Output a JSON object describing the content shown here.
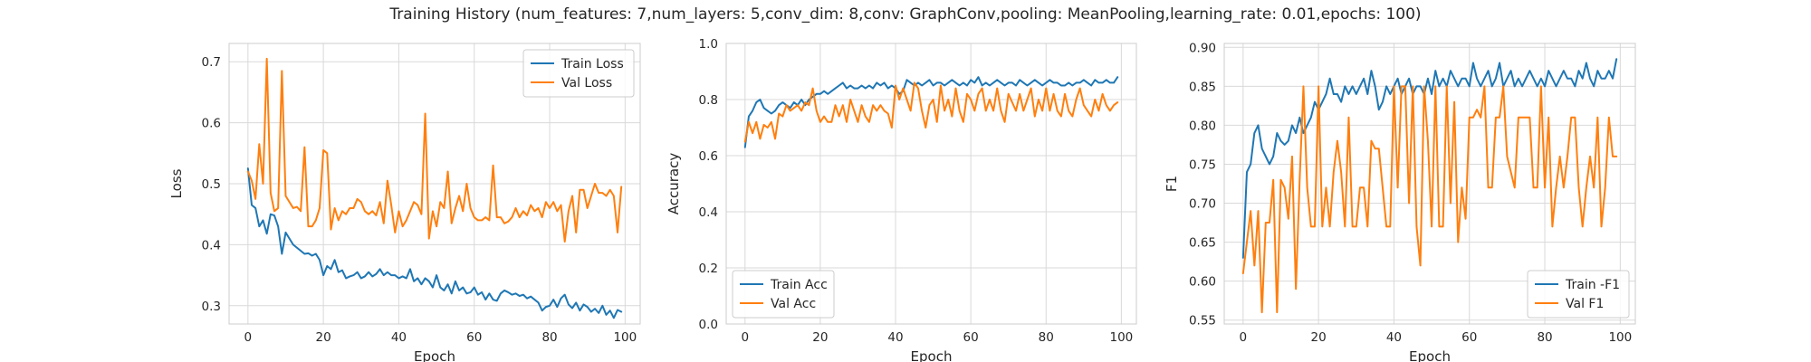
{
  "figure": {
    "title": "Training History (num_features: 7,num_layers: 5,conv_dim: 8,conv: GraphConv,pooling: MeanPooling,learning_rate: 0.01,epochs: 100)"
  },
  "colors": {
    "train": "#1f77b4",
    "val": "#ff7f0e",
    "grid": "#d9d9d9",
    "frame": "#cccccc",
    "text": "#262626"
  },
  "chart_data": [
    {
      "type": "line",
      "xlabel": "Epoch",
      "ylabel": "Loss",
      "xlim": [
        -5,
        104
      ],
      "ylim": [
        0.27,
        0.73
      ],
      "xticks": [
        0,
        20,
        40,
        60,
        80,
        100
      ],
      "yticks": [
        0.3,
        0.4,
        0.5,
        0.6,
        0.7
      ],
      "ytick_decimals": 1,
      "grid": true,
      "legend": "top-right",
      "series": [
        {
          "name": "Train Loss",
          "color": "#1f77b4",
          "x_start": 0,
          "values": [
            0.525,
            0.465,
            0.46,
            0.43,
            0.44,
            0.418,
            0.45,
            0.448,
            0.43,
            0.385,
            0.42,
            0.41,
            0.4,
            0.395,
            0.39,
            0.385,
            0.386,
            0.382,
            0.385,
            0.375,
            0.35,
            0.365,
            0.36,
            0.375,
            0.355,
            0.358,
            0.345,
            0.348,
            0.35,
            0.355,
            0.345,
            0.348,
            0.355,
            0.348,
            0.352,
            0.36,
            0.35,
            0.355,
            0.35,
            0.35,
            0.345,
            0.348,
            0.345,
            0.36,
            0.34,
            0.345,
            0.335,
            0.345,
            0.34,
            0.33,
            0.35,
            0.33,
            0.325,
            0.335,
            0.32,
            0.34,
            0.325,
            0.33,
            0.32,
            0.322,
            0.33,
            0.318,
            0.322,
            0.31,
            0.32,
            0.31,
            0.308,
            0.32,
            0.325,
            0.322,
            0.318,
            0.32,
            0.316,
            0.318,
            0.312,
            0.315,
            0.31,
            0.305,
            0.292,
            0.298,
            0.3,
            0.31,
            0.298,
            0.312,
            0.318,
            0.302,
            0.296,
            0.305,
            0.292,
            0.302,
            0.298,
            0.29,
            0.295,
            0.288,
            0.3,
            0.285,
            0.292,
            0.28,
            0.293,
            0.29
          ]
        },
        {
          "name": "Val Loss",
          "color": "#ff7f0e",
          "x_start": 0,
          "values": [
            0.52,
            0.505,
            0.475,
            0.565,
            0.5,
            0.705,
            0.485,
            0.455,
            0.46,
            0.685,
            0.48,
            0.47,
            0.46,
            0.462,
            0.455,
            0.56,
            0.43,
            0.43,
            0.44,
            0.46,
            0.555,
            0.55,
            0.425,
            0.46,
            0.44,
            0.455,
            0.45,
            0.46,
            0.46,
            0.475,
            0.47,
            0.455,
            0.45,
            0.455,
            0.448,
            0.47,
            0.435,
            0.505,
            0.465,
            0.42,
            0.455,
            0.43,
            0.44,
            0.455,
            0.47,
            0.465,
            0.45,
            0.615,
            0.41,
            0.455,
            0.43,
            0.47,
            0.46,
            0.52,
            0.435,
            0.46,
            0.48,
            0.455,
            0.5,
            0.46,
            0.445,
            0.44,
            0.44,
            0.445,
            0.44,
            0.53,
            0.445,
            0.445,
            0.435,
            0.438,
            0.445,
            0.46,
            0.445,
            0.455,
            0.448,
            0.465,
            0.455,
            0.46,
            0.445,
            0.47,
            0.46,
            0.47,
            0.455,
            0.465,
            0.405,
            0.455,
            0.48,
            0.42,
            0.49,
            0.49,
            0.46,
            0.48,
            0.5,
            0.485,
            0.485,
            0.48,
            0.49,
            0.48,
            0.42,
            0.495
          ]
        }
      ]
    },
    {
      "type": "line",
      "xlabel": "Epoch",
      "ylabel": "Accuracy",
      "xlim": [
        -5,
        104
      ],
      "ylim": [
        0.0,
        1.0
      ],
      "xticks": [
        0,
        20,
        40,
        60,
        80,
        100
      ],
      "yticks": [
        0.0,
        0.2,
        0.4,
        0.6,
        0.8,
        1.0
      ],
      "ytick_decimals": 1,
      "grid": true,
      "legend": "bottom-left",
      "series": [
        {
          "name": "Train Acc",
          "color": "#1f77b4",
          "x_start": 0,
          "values": [
            0.63,
            0.74,
            0.76,
            0.79,
            0.8,
            0.77,
            0.76,
            0.75,
            0.76,
            0.78,
            0.79,
            0.78,
            0.77,
            0.79,
            0.78,
            0.8,
            0.78,
            0.8,
            0.81,
            0.82,
            0.82,
            0.83,
            0.82,
            0.83,
            0.84,
            0.85,
            0.86,
            0.84,
            0.85,
            0.84,
            0.84,
            0.85,
            0.84,
            0.85,
            0.84,
            0.86,
            0.85,
            0.86,
            0.84,
            0.85,
            0.84,
            0.82,
            0.83,
            0.87,
            0.86,
            0.85,
            0.86,
            0.85,
            0.86,
            0.87,
            0.85,
            0.86,
            0.86,
            0.85,
            0.86,
            0.87,
            0.86,
            0.85,
            0.86,
            0.85,
            0.87,
            0.86,
            0.88,
            0.85,
            0.86,
            0.85,
            0.86,
            0.87,
            0.86,
            0.85,
            0.86,
            0.86,
            0.85,
            0.87,
            0.86,
            0.85,
            0.86,
            0.87,
            0.86,
            0.85,
            0.86,
            0.87,
            0.86,
            0.86,
            0.85,
            0.85,
            0.86,
            0.85,
            0.86,
            0.86,
            0.87,
            0.86,
            0.85,
            0.87,
            0.86,
            0.86,
            0.87,
            0.86,
            0.86,
            0.88
          ]
        },
        {
          "name": "Val Acc",
          "color": "#ff7f0e",
          "x_start": 0,
          "values": [
            0.65,
            0.72,
            0.68,
            0.72,
            0.66,
            0.71,
            0.7,
            0.72,
            0.66,
            0.75,
            0.74,
            0.78,
            0.76,
            0.77,
            0.78,
            0.76,
            0.79,
            0.78,
            0.84,
            0.76,
            0.72,
            0.74,
            0.72,
            0.72,
            0.78,
            0.74,
            0.78,
            0.72,
            0.8,
            0.76,
            0.72,
            0.78,
            0.74,
            0.72,
            0.78,
            0.76,
            0.78,
            0.76,
            0.75,
            0.7,
            0.85,
            0.8,
            0.84,
            0.8,
            0.76,
            0.86,
            0.84,
            0.76,
            0.7,
            0.78,
            0.8,
            0.72,
            0.85,
            0.76,
            0.8,
            0.74,
            0.84,
            0.76,
            0.72,
            0.82,
            0.8,
            0.76,
            0.82,
            0.84,
            0.76,
            0.8,
            0.76,
            0.84,
            0.76,
            0.72,
            0.82,
            0.79,
            0.76,
            0.82,
            0.76,
            0.8,
            0.84,
            0.74,
            0.8,
            0.76,
            0.84,
            0.76,
            0.82,
            0.76,
            0.74,
            0.82,
            0.76,
            0.74,
            0.8,
            0.84,
            0.78,
            0.76,
            0.74,
            0.8,
            0.76,
            0.82,
            0.78,
            0.76,
            0.78,
            0.79
          ]
        }
      ]
    },
    {
      "type": "line",
      "xlabel": "Epoch",
      "ylabel": "F1",
      "xlim": [
        -5,
        104
      ],
      "ylim": [
        0.545,
        0.905
      ],
      "xticks": [
        0,
        20,
        40,
        60,
        80,
        100
      ],
      "yticks": [
        0.55,
        0.6,
        0.65,
        0.7,
        0.75,
        0.8,
        0.85,
        0.9
      ],
      "ytick_decimals": 2,
      "grid": true,
      "legend": "bottom-right",
      "series": [
        {
          "name": "Train -F1",
          "color": "#1f77b4",
          "x_start": 0,
          "values": [
            0.63,
            0.74,
            0.75,
            0.79,
            0.8,
            0.77,
            0.76,
            0.75,
            0.76,
            0.79,
            0.78,
            0.775,
            0.78,
            0.8,
            0.79,
            0.81,
            0.79,
            0.8,
            0.81,
            0.83,
            0.82,
            0.83,
            0.84,
            0.86,
            0.84,
            0.84,
            0.83,
            0.85,
            0.84,
            0.85,
            0.84,
            0.85,
            0.86,
            0.84,
            0.87,
            0.85,
            0.82,
            0.83,
            0.85,
            0.84,
            0.85,
            0.86,
            0.84,
            0.85,
            0.86,
            0.84,
            0.85,
            0.85,
            0.84,
            0.86,
            0.84,
            0.87,
            0.85,
            0.86,
            0.85,
            0.87,
            0.86,
            0.85,
            0.86,
            0.86,
            0.85,
            0.88,
            0.86,
            0.85,
            0.86,
            0.87,
            0.85,
            0.86,
            0.88,
            0.85,
            0.86,
            0.87,
            0.85,
            0.86,
            0.85,
            0.86,
            0.87,
            0.86,
            0.85,
            0.86,
            0.85,
            0.87,
            0.86,
            0.85,
            0.86,
            0.87,
            0.86,
            0.86,
            0.85,
            0.87,
            0.86,
            0.88,
            0.86,
            0.85,
            0.87,
            0.86,
            0.86,
            0.87,
            0.86,
            0.885
          ]
        },
        {
          "name": "Val F1",
          "color": "#ff7f0e",
          "x_start": 0,
          "values": [
            0.61,
            0.65,
            0.69,
            0.62,
            0.69,
            0.56,
            0.675,
            0.675,
            0.73,
            0.56,
            0.73,
            0.72,
            0.68,
            0.76,
            0.59,
            0.73,
            0.85,
            0.72,
            0.67,
            0.67,
            0.85,
            0.67,
            0.72,
            0.67,
            0.74,
            0.78,
            0.74,
            0.67,
            0.81,
            0.67,
            0.67,
            0.72,
            0.72,
            0.67,
            0.78,
            0.77,
            0.77,
            0.72,
            0.67,
            0.67,
            0.85,
            0.72,
            0.85,
            0.85,
            0.7,
            0.85,
            0.67,
            0.62,
            0.85,
            0.78,
            0.67,
            0.85,
            0.67,
            0.67,
            0.85,
            0.7,
            0.83,
            0.65,
            0.72,
            0.68,
            0.81,
            0.81,
            0.82,
            0.81,
            0.85,
            0.72,
            0.72,
            0.81,
            0.81,
            0.85,
            0.76,
            0.74,
            0.72,
            0.81,
            0.81,
            0.81,
            0.81,
            0.72,
            0.72,
            0.85,
            0.72,
            0.81,
            0.67,
            0.72,
            0.76,
            0.72,
            0.76,
            0.81,
            0.81,
            0.72,
            0.67,
            0.72,
            0.76,
            0.72,
            0.81,
            0.67,
            0.72,
            0.81,
            0.76,
            0.76
          ]
        }
      ]
    }
  ]
}
